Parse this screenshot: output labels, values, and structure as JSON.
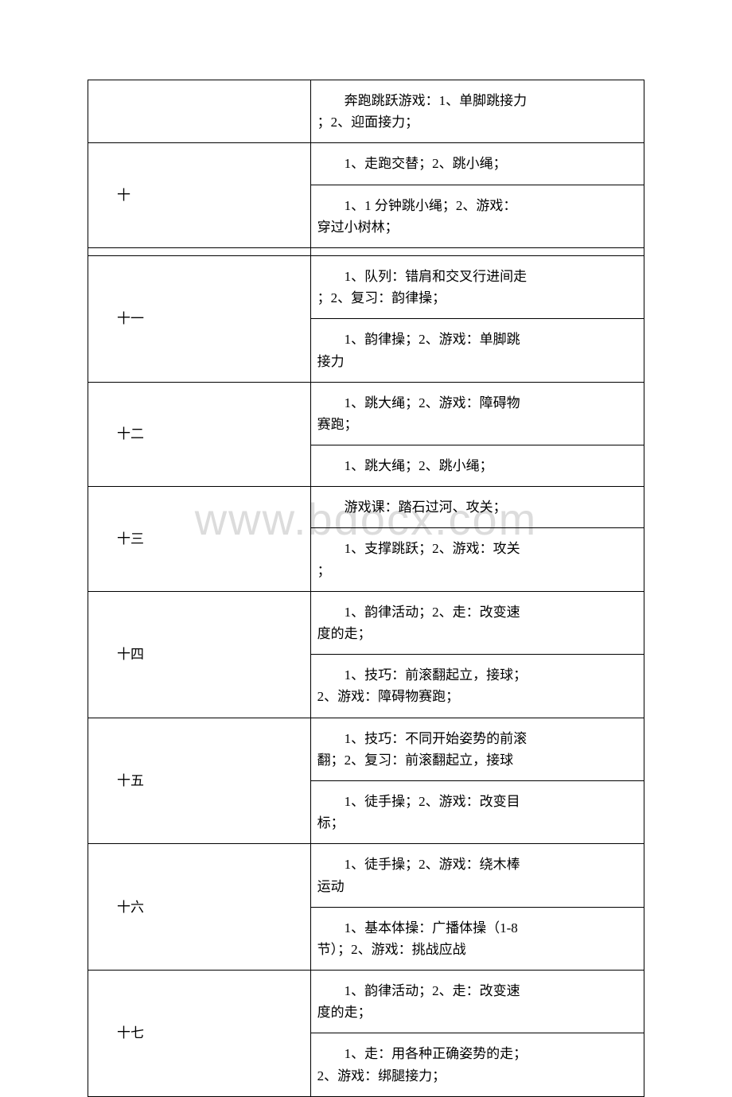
{
  "watermark": "www.bdocx.com",
  "table": {
    "border_color": "#000000",
    "font_family": "SimSun",
    "font_size": 17,
    "text_color": "#000000",
    "background_color": "#ffffff",
    "watermark_color": "#dcdcdc",
    "rows": [
      {
        "week": "",
        "week_rowspan": 1,
        "cells": [
          {
            "line1": "奔跑跳跃游戏：1、单脚跳接力",
            "line2": "；2、迎面接力；"
          }
        ]
      },
      {
        "week": "十",
        "week_rowspan": 2,
        "cells": [
          {
            "line1": "1、走跑交替；2、跳小绳；",
            "line2": ""
          },
          {
            "line1": "1、1 分钟跳小绳；2、游戏：",
            "line2": "穿过小树林；"
          }
        ]
      },
      {
        "week": "",
        "week_rowspan": 0,
        "cells": [
          {
            "spacer": true
          }
        ]
      },
      {
        "week": "十一",
        "week_rowspan": 2,
        "cells": [
          {
            "line1": "1、队列：错肩和交叉行进间走",
            "line2": "；2、复习：韵律操；"
          },
          {
            "line1": "1、韵律操；2、游戏：单脚跳",
            "line2": "接力"
          }
        ]
      },
      {
        "week": "十二",
        "week_rowspan": 2,
        "cells": [
          {
            "line1": "1、跳大绳；2、游戏：障碍物",
            "line2": "赛跑；"
          },
          {
            "line1": "1、跳大绳；2、跳小绳；",
            "line2": ""
          }
        ]
      },
      {
        "week": "十三",
        "week_rowspan": 2,
        "cells": [
          {
            "line1": "游戏课：踏石过河、攻关；",
            "line2": ""
          },
          {
            "line1": "1、支撑跳跃；2、游戏：攻关",
            "line2": "；"
          }
        ]
      },
      {
        "week": "十四",
        "week_rowspan": 2,
        "cells": [
          {
            "line1": "1、韵律活动；2、走：改变速",
            "line2": "度的走；"
          },
          {
            "line1": "1、技巧：前滚翻起立，接球；",
            "line2": "2、游戏：障碍物赛跑；"
          }
        ]
      },
      {
        "week": "十五",
        "week_rowspan": 2,
        "cells": [
          {
            "line1": "1、技巧：不同开始姿势的前滚",
            "line2": "翻；2、复习：前滚翻起立，接球"
          },
          {
            "line1": "1、徒手操；2、游戏：改变目",
            "line2": "标；"
          }
        ]
      },
      {
        "week": "十六",
        "week_rowspan": 2,
        "cells": [
          {
            "line1": "1、徒手操；2、游戏：绕木棒",
            "line2": "运动"
          },
          {
            "line1": "1、基本体操：广播体操（1-8",
            "line2": "节）；2、游戏：挑战应战"
          }
        ]
      },
      {
        "week": "十七",
        "week_rowspan": 2,
        "cells": [
          {
            "line1": "1、韵律活动；2、走：改变速",
            "line2": "度的走；"
          },
          {
            "line1": "1、走：用各种正确姿势的走；",
            "line2": "2、游戏：绑腿接力；"
          }
        ]
      }
    ]
  }
}
